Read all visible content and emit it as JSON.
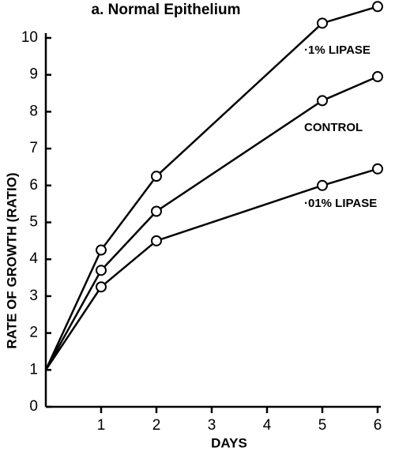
{
  "chart_data": {
    "type": "line",
    "title": "a. Normal Epithelium",
    "x_label": "DAYS",
    "y_label": "RATE OF GROWTH (RATIO)",
    "x": [
      0,
      1,
      2,
      5,
      6
    ],
    "series": [
      {
        "name": "·1% LIPASE",
        "color": "#000000",
        "values": [
          1,
          4.25,
          6.25,
          10.4,
          10.85
        ]
      },
      {
        "name": "CONTROL",
        "color": "#000000",
        "values": [
          1,
          3.7,
          5.3,
          8.3,
          8.95
        ]
      },
      {
        "name": "·01% LIPASE",
        "color": "#000000",
        "values": [
          1,
          3.25,
          4.5,
          6,
          6.45
        ]
      }
    ],
    "xlim": [
      0,
      6
    ],
    "xticks": [
      1,
      2,
      3,
      4,
      5,
      6
    ],
    "ylim": [
      0,
      10
    ],
    "yticks": [
      0,
      1,
      2,
      3,
      4,
      5,
      6,
      7,
      8,
      9,
      10
    ],
    "markers": "open-circle",
    "grid": false
  }
}
